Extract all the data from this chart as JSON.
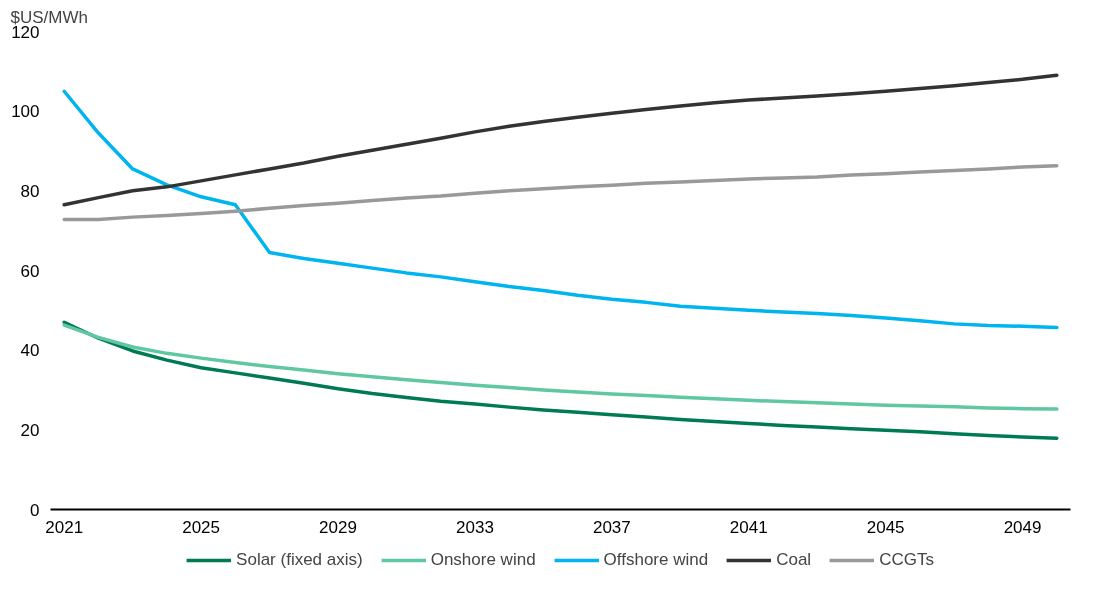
{
  "chart_data": {
    "type": "line",
    "ylabel": "$US/MWh",
    "x": [
      2021,
      2022,
      2023,
      2024,
      2025,
      2026,
      2027,
      2028,
      2029,
      2030,
      2031,
      2032,
      2033,
      2034,
      2035,
      2036,
      2037,
      2038,
      2039,
      2040,
      2041,
      2042,
      2043,
      2044,
      2045,
      2046,
      2047,
      2048,
      2049,
      2050
    ],
    "xlim": [
      2020.6,
      2050.4
    ],
    "xticks": [
      2021,
      2025,
      2029,
      2033,
      2037,
      2041,
      2045,
      2049
    ],
    "ylim": [
      0,
      120
    ],
    "yticks": [
      0,
      20,
      40,
      60,
      80,
      100,
      120
    ],
    "grid": false,
    "legend": "bottom",
    "marker": "none",
    "line_style": "solid",
    "series": [
      {
        "name": "Solar (fixed axis)",
        "color": "#007a55",
        "values": [
          47,
          43,
          39.8,
          37.5,
          35.6,
          34.3,
          33,
          31.7,
          30.3,
          29.1,
          28.1,
          27.2,
          26.5,
          25.7,
          25,
          24.4,
          23.8,
          23.2,
          22.6,
          22.1,
          21.6,
          21.1,
          20.7,
          20.3,
          19.9,
          19.5,
          19,
          18.6,
          18.2,
          17.9
        ]
      },
      {
        "name": "Onshore wind",
        "color": "#5fc8a0",
        "values": [
          46.3,
          43.2,
          40.8,
          39.2,
          38,
          36.9,
          35.9,
          35,
          34.1,
          33.3,
          32.6,
          31.9,
          31.2,
          30.6,
          30,
          29.5,
          29,
          28.6,
          28.2,
          27.8,
          27.4,
          27.1,
          26.8,
          26.5,
          26.2,
          26,
          25.8,
          25.5,
          25.3,
          25.2
        ]
      },
      {
        "name": "Offshore wind",
        "color": "#00b4f0",
        "values": [
          105,
          94.5,
          85.5,
          81.5,
          78.5,
          76.5,
          64.5,
          63,
          61.8,
          60.6,
          59.4,
          58.4,
          57.2,
          56,
          55,
          53.8,
          52.8,
          52,
          51,
          50.5,
          50,
          49.6,
          49.2,
          48.7,
          48.1,
          47.4,
          46.6,
          46.2,
          46,
          45.7
        ]
      },
      {
        "name": "Coal",
        "color": "#333333",
        "values": [
          76.5,
          78.3,
          80,
          81,
          82.5,
          84,
          85.5,
          87,
          88.7,
          90.2,
          91.7,
          93.2,
          94.8,
          96.2,
          97.4,
          98.5,
          99.5,
          100.4,
          101.3,
          102.1,
          102.8,
          103.3,
          103.8,
          104.4,
          105,
          105.7,
          106.4,
          107.2,
          108,
          109
        ]
      },
      {
        "name": "CCGTs",
        "color": "#999999",
        "values": [
          72.8,
          72.8,
          73.4,
          73.8,
          74.3,
          74.9,
          75.6,
          76.3,
          76.9,
          77.6,
          78.2,
          78.7,
          79.4,
          80,
          80.5,
          81,
          81.4,
          81.9,
          82.2,
          82.6,
          83,
          83.2,
          83.5,
          84,
          84.3,
          84.7,
          85.1,
          85.5,
          86,
          86.3
        ]
      }
    ]
  }
}
